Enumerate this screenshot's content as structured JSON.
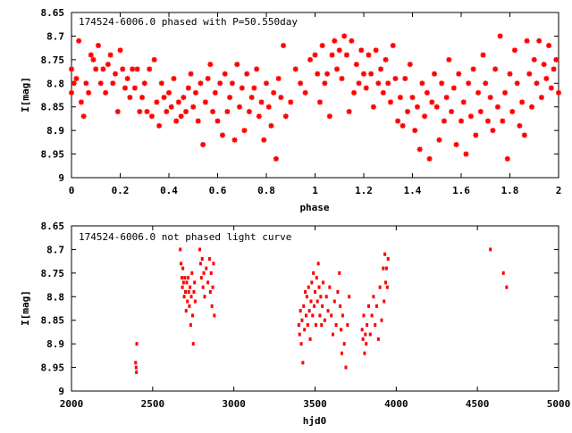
{
  "chart_data": [
    {
      "type": "scatter",
      "title": "174524-6006.0 phased with P=50.550day",
      "xlabel": "phase",
      "ylabel": "I[mag]",
      "xlim": [
        0,
        2
      ],
      "ylim": [
        8.65,
        9.0
      ],
      "y_inverted": true,
      "grid": false,
      "marker_color": "#ff0000",
      "marker": "star",
      "xticks": [
        "0",
        "0.2",
        "0.4",
        "0.6",
        "0.8",
        "1",
        "1.2",
        "1.4",
        "1.6",
        "1.8",
        "2"
      ],
      "yticks": [
        "8.65",
        "8.7",
        "8.75",
        "8.8",
        "8.85",
        "8.9",
        "8.95",
        "9"
      ],
      "points": [
        [
          0.0,
          8.77
        ],
        [
          0.0,
          8.82
        ],
        [
          0.01,
          8.8
        ],
        [
          0.02,
          8.79
        ],
        [
          0.03,
          8.71
        ],
        [
          0.04,
          8.84
        ],
        [
          0.05,
          8.87
        ],
        [
          0.06,
          8.8
        ],
        [
          0.07,
          8.82
        ],
        [
          0.08,
          8.74
        ],
        [
          0.09,
          8.75
        ],
        [
          0.1,
          8.77
        ],
        [
          0.11,
          8.72
        ],
        [
          0.12,
          8.8
        ],
        [
          0.13,
          8.77
        ],
        [
          0.14,
          8.82
        ],
        [
          0.15,
          8.76
        ],
        [
          0.16,
          8.74
        ],
        [
          0.17,
          8.8
        ],
        [
          0.18,
          8.78
        ],
        [
          0.19,
          8.86
        ],
        [
          0.2,
          8.73
        ],
        [
          0.21,
          8.77
        ],
        [
          0.22,
          8.81
        ],
        [
          0.23,
          8.79
        ],
        [
          0.24,
          8.83
        ],
        [
          0.25,
          8.77
        ],
        [
          0.26,
          8.81
        ],
        [
          0.27,
          8.77
        ],
        [
          0.28,
          8.86
        ],
        [
          0.29,
          8.83
        ],
        [
          0.3,
          8.8
        ],
        [
          0.31,
          8.86
        ],
        [
          0.32,
          8.77
        ],
        [
          0.33,
          8.87
        ],
        [
          0.34,
          8.75
        ],
        [
          0.35,
          8.84
        ],
        [
          0.36,
          8.89
        ],
        [
          0.37,
          8.8
        ],
        [
          0.38,
          8.83
        ],
        [
          0.39,
          8.86
        ],
        [
          0.4,
          8.82
        ],
        [
          0.41,
          8.85
        ],
        [
          0.42,
          8.79
        ],
        [
          0.43,
          8.88
        ],
        [
          0.44,
          8.84
        ],
        [
          0.45,
          8.87
        ],
        [
          0.46,
          8.83
        ],
        [
          0.47,
          8.86
        ],
        [
          0.48,
          8.81
        ],
        [
          0.49,
          8.78
        ],
        [
          0.5,
          8.85
        ],
        [
          0.51,
          8.82
        ],
        [
          0.52,
          8.88
        ],
        [
          0.53,
          8.8
        ],
        [
          0.54,
          8.93
        ],
        [
          0.55,
          8.84
        ],
        [
          0.56,
          8.79
        ],
        [
          0.57,
          8.76
        ],
        [
          0.58,
          8.86
        ],
        [
          0.59,
          8.82
        ],
        [
          0.6,
          8.88
        ],
        [
          0.61,
          8.8
        ],
        [
          0.62,
          8.91
        ],
        [
          0.63,
          8.78
        ],
        [
          0.64,
          8.86
        ],
        [
          0.65,
          8.83
        ],
        [
          0.66,
          8.8
        ],
        [
          0.67,
          8.92
        ],
        [
          0.68,
          8.76
        ],
        [
          0.69,
          8.85
        ],
        [
          0.7,
          8.81
        ],
        [
          0.71,
          8.9
        ],
        [
          0.72,
          8.78
        ],
        [
          0.73,
          8.86
        ],
        [
          0.74,
          8.83
        ],
        [
          0.75,
          8.81
        ],
        [
          0.76,
          8.77
        ],
        [
          0.77,
          8.87
        ],
        [
          0.78,
          8.84
        ],
        [
          0.79,
          8.92
        ],
        [
          0.8,
          8.8
        ],
        [
          0.81,
          8.85
        ],
        [
          0.82,
          8.89
        ],
        [
          0.83,
          8.82
        ],
        [
          0.84,
          8.96
        ],
        [
          0.85,
          8.79
        ],
        [
          0.86,
          8.83
        ],
        [
          0.87,
          8.72
        ],
        [
          0.88,
          8.87
        ],
        [
          0.9,
          8.84
        ],
        [
          0.92,
          8.77
        ],
        [
          0.94,
          8.8
        ],
        [
          0.96,
          8.82
        ],
        [
          0.98,
          8.75
        ],
        [
          1.0,
          8.74
        ],
        [
          1.01,
          8.78
        ],
        [
          1.02,
          8.84
        ],
        [
          1.03,
          8.72
        ],
        [
          1.04,
          8.8
        ],
        [
          1.05,
          8.78
        ],
        [
          1.06,
          8.87
        ],
        [
          1.07,
          8.74
        ],
        [
          1.08,
          8.71
        ],
        [
          1.09,
          8.77
        ],
        [
          1.1,
          8.73
        ],
        [
          1.11,
          8.79
        ],
        [
          1.12,
          8.7
        ],
        [
          1.13,
          8.74
        ],
        [
          1.14,
          8.86
        ],
        [
          1.15,
          8.71
        ],
        [
          1.16,
          8.82
        ],
        [
          1.17,
          8.76
        ],
        [
          1.18,
          8.8
        ],
        [
          1.19,
          8.73
        ],
        [
          1.2,
          8.78
        ],
        [
          1.21,
          8.81
        ],
        [
          1.22,
          8.74
        ],
        [
          1.23,
          8.78
        ],
        [
          1.24,
          8.85
        ],
        [
          1.25,
          8.73
        ],
        [
          1.26,
          8.8
        ],
        [
          1.27,
          8.77
        ],
        [
          1.28,
          8.82
        ],
        [
          1.29,
          8.75
        ],
        [
          1.3,
          8.8
        ],
        [
          1.31,
          8.84
        ],
        [
          1.32,
          8.72
        ],
        [
          1.33,
          8.79
        ],
        [
          1.34,
          8.88
        ],
        [
          1.35,
          8.83
        ],
        [
          1.36,
          8.89
        ],
        [
          1.37,
          8.79
        ],
        [
          1.38,
          8.86
        ],
        [
          1.39,
          8.76
        ],
        [
          1.4,
          8.83
        ],
        [
          1.41,
          8.9
        ],
        [
          1.42,
          8.85
        ],
        [
          1.43,
          8.94
        ],
        [
          1.44,
          8.8
        ],
        [
          1.45,
          8.87
        ],
        [
          1.46,
          8.82
        ],
        [
          1.47,
          8.96
        ],
        [
          1.48,
          8.84
        ],
        [
          1.49,
          8.78
        ],
        [
          1.5,
          8.85
        ],
        [
          1.51,
          8.92
        ],
        [
          1.52,
          8.8
        ],
        [
          1.53,
          8.88
        ],
        [
          1.54,
          8.83
        ],
        [
          1.55,
          8.75
        ],
        [
          1.56,
          8.86
        ],
        [
          1.57,
          8.81
        ],
        [
          1.58,
          8.93
        ],
        [
          1.59,
          8.78
        ],
        [
          1.6,
          8.88
        ],
        [
          1.61,
          8.84
        ],
        [
          1.62,
          8.95
        ],
        [
          1.63,
          8.8
        ],
        [
          1.64,
          8.87
        ],
        [
          1.65,
          8.77
        ],
        [
          1.66,
          8.91
        ],
        [
          1.67,
          8.82
        ],
        [
          1.68,
          8.86
        ],
        [
          1.69,
          8.74
        ],
        [
          1.7,
          8.8
        ],
        [
          1.71,
          8.88
        ],
        [
          1.72,
          8.83
        ],
        [
          1.73,
          8.9
        ],
        [
          1.74,
          8.77
        ],
        [
          1.75,
          8.85
        ],
        [
          1.76,
          8.7
        ],
        [
          1.77,
          8.88
        ],
        [
          1.78,
          8.82
        ],
        [
          1.79,
          8.96
        ],
        [
          1.8,
          8.78
        ],
        [
          1.81,
          8.86
        ],
        [
          1.82,
          8.73
        ],
        [
          1.83,
          8.8
        ],
        [
          1.84,
          8.89
        ],
        [
          1.85,
          8.84
        ],
        [
          1.86,
          8.91
        ],
        [
          1.87,
          8.71
        ],
        [
          1.88,
          8.78
        ],
        [
          1.89,
          8.85
        ],
        [
          1.9,
          8.75
        ],
        [
          1.91,
          8.8
        ],
        [
          1.92,
          8.71
        ],
        [
          1.93,
          8.83
        ],
        [
          1.94,
          8.76
        ],
        [
          1.95,
          8.79
        ],
        [
          1.96,
          8.72
        ],
        [
          1.97,
          8.81
        ],
        [
          1.98,
          8.77
        ],
        [
          1.99,
          8.75
        ],
        [
          2.0,
          8.82
        ]
      ]
    },
    {
      "type": "scatter",
      "title": "174524-6006.0 not phased light curve",
      "xlabel": "hjd0",
      "ylabel": "I[mag]",
      "xlim": [
        2000,
        5000
      ],
      "ylim": [
        8.65,
        9.0
      ],
      "y_inverted": true,
      "grid": false,
      "marker_color": "#ff0000",
      "marker": "dot",
      "xticks": [
        "2000",
        "2500",
        "3000",
        "3500",
        "4000",
        "4500",
        "5000"
      ],
      "yticks": [
        "8.65",
        "8.7",
        "8.75",
        "8.8",
        "8.85",
        "8.9",
        "8.95",
        "9"
      ],
      "points": [
        [
          2395,
          8.94
        ],
        [
          2398,
          8.95
        ],
        [
          2400,
          8.96
        ],
        [
          2402,
          8.9
        ],
        [
          2670,
          8.7
        ],
        [
          2675,
          8.73
        ],
        [
          2680,
          8.76
        ],
        [
          2683,
          8.78
        ],
        [
          2686,
          8.74
        ],
        [
          2690,
          8.77
        ],
        [
          2694,
          8.8
        ],
        [
          2698,
          8.76
        ],
        [
          2702,
          8.79
        ],
        [
          2706,
          8.83
        ],
        [
          2710,
          8.77
        ],
        [
          2714,
          8.81
        ],
        [
          2718,
          8.76
        ],
        [
          2722,
          8.79
        ],
        [
          2726,
          8.82
        ],
        [
          2730,
          8.78
        ],
        [
          2734,
          8.86
        ],
        [
          2738,
          8.8
        ],
        [
          2742,
          8.75
        ],
        [
          2746,
          8.84
        ],
        [
          2750,
          8.9
        ],
        [
          2754,
          8.79
        ],
        [
          2758,
          8.77
        ],
        [
          2762,
          8.81
        ],
        [
          2790,
          8.7
        ],
        [
          2795,
          8.73
        ],
        [
          2800,
          8.76
        ],
        [
          2805,
          8.72
        ],
        [
          2810,
          8.78
        ],
        [
          2815,
          8.75
        ],
        [
          2820,
          8.8
        ],
        [
          2830,
          8.74
        ],
        [
          2840,
          8.77
        ],
        [
          2850,
          8.72
        ],
        [
          2855,
          8.79
        ],
        [
          2860,
          8.75
        ],
        [
          2865,
          8.82
        ],
        [
          2870,
          8.78
        ],
        [
          2875,
          8.73
        ],
        [
          2880,
          8.84
        ],
        [
          3400,
          8.86
        ],
        [
          3405,
          8.88
        ],
        [
          3410,
          8.83
        ],
        [
          3415,
          8.9
        ],
        [
          3420,
          8.85
        ],
        [
          3425,
          8.94
        ],
        [
          3430,
          8.82
        ],
        [
          3435,
          8.87
        ],
        [
          3440,
          8.79
        ],
        [
          3445,
          8.84
        ],
        [
          3450,
          8.8
        ],
        [
          3455,
          8.86
        ],
        [
          3460,
          8.78
        ],
        [
          3465,
          8.83
        ],
        [
          3470,
          8.89
        ],
        [
          3475,
          8.81
        ],
        [
          3480,
          8.77
        ],
        [
          3485,
          8.84
        ],
        [
          3490,
          8.75
        ],
        [
          3495,
          8.82
        ],
        [
          3500,
          8.79
        ],
        [
          3505,
          8.86
        ],
        [
          3510,
          8.76
        ],
        [
          3515,
          8.81
        ],
        [
          3520,
          8.73
        ],
        [
          3525,
          8.78
        ],
        [
          3530,
          8.84
        ],
        [
          3535,
          8.8
        ],
        [
          3540,
          8.86
        ],
        [
          3545,
          8.82
        ],
        [
          3550,
          8.77
        ],
        [
          3560,
          8.85
        ],
        [
          3570,
          8.8
        ],
        [
          3580,
          8.83
        ],
        [
          3590,
          8.78
        ],
        [
          3600,
          8.84
        ],
        [
          3610,
          8.88
        ],
        [
          3620,
          8.81
        ],
        [
          3630,
          8.86
        ],
        [
          3640,
          8.79
        ],
        [
          3650,
          8.75
        ],
        [
          3655,
          8.82
        ],
        [
          3660,
          8.87
        ],
        [
          3665,
          8.92
        ],
        [
          3670,
          8.84
        ],
        [
          3680,
          8.9
        ],
        [
          3690,
          8.95
        ],
        [
          3700,
          8.86
        ],
        [
          3710,
          8.8
        ],
        [
          3790,
          8.87
        ],
        [
          3795,
          8.89
        ],
        [
          3800,
          8.84
        ],
        [
          3805,
          8.92
        ],
        [
          3810,
          8.88
        ],
        [
          3815,
          8.9
        ],
        [
          3820,
          8.86
        ],
        [
          3830,
          8.82
        ],
        [
          3840,
          8.88
        ],
        [
          3850,
          8.84
        ],
        [
          3860,
          8.8
        ],
        [
          3870,
          8.86
        ],
        [
          3880,
          8.82
        ],
        [
          3890,
          8.89
        ],
        [
          3900,
          8.78
        ],
        [
          3910,
          8.85
        ],
        [
          3920,
          8.74
        ],
        [
          3925,
          8.81
        ],
        [
          3930,
          8.71
        ],
        [
          3935,
          8.77
        ],
        [
          3940,
          8.74
        ],
        [
          3945,
          8.78
        ],
        [
          3950,
          8.72
        ],
        [
          4580,
          8.7
        ],
        [
          4660,
          8.75
        ],
        [
          4680,
          8.78
        ]
      ]
    }
  ]
}
